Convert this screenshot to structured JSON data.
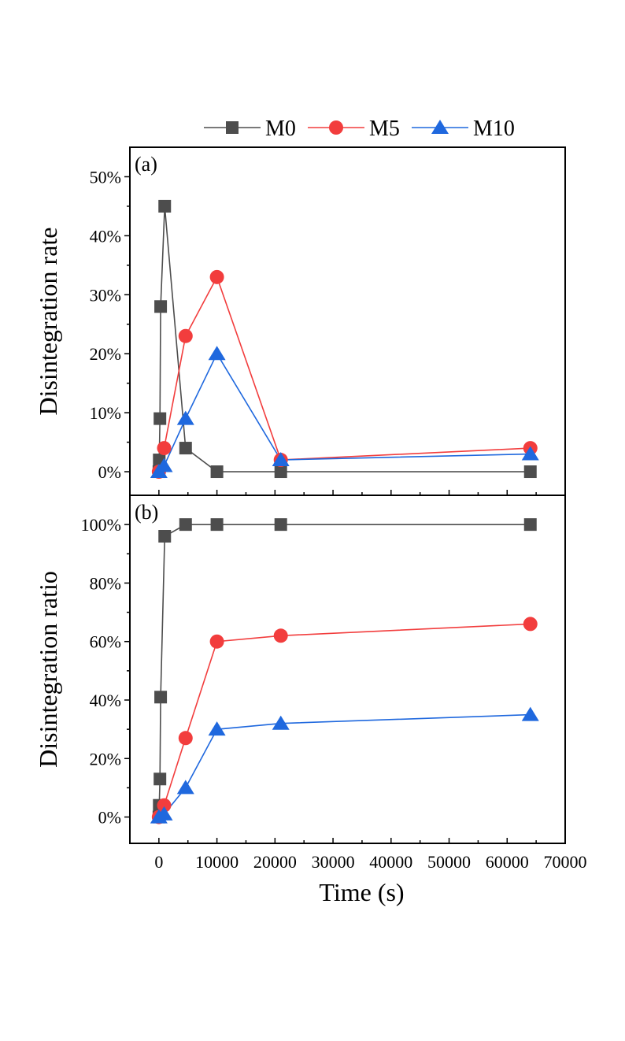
{
  "chart_data": [
    {
      "type": "line",
      "panel_label": "(a)",
      "ylabel": "Disintegration rate",
      "xlabel": "",
      "ylim": [
        -4,
        55
      ],
      "xlim": [
        -5000,
        70000
      ],
      "yticks": [
        "0%",
        "10%",
        "20%",
        "30%",
        "40%",
        "50%"
      ],
      "ytick_values": [
        0,
        10,
        20,
        30,
        40,
        50
      ],
      "series": [
        {
          "name": "M0",
          "color": "#4d4d4d",
          "marker": "square",
          "x": [
            0,
            60,
            180,
            300,
            1000,
            4600,
            10000,
            21000,
            64000
          ],
          "y": [
            0,
            2,
            9,
            28,
            45,
            4,
            0,
            0,
            0
          ]
        },
        {
          "name": "M5",
          "color": "#f23d3d",
          "marker": "circle",
          "x": [
            0,
            900,
            4600,
            10000,
            21000,
            64000
          ],
          "y": [
            0,
            4,
            23,
            33,
            2,
            4
          ]
        },
        {
          "name": "M10",
          "color": "#1f68de",
          "marker": "triangle",
          "x": [
            0,
            900,
            4600,
            10000,
            21000,
            64000
          ],
          "y": [
            0,
            1,
            9,
            20,
            2,
            3
          ]
        }
      ]
    },
    {
      "type": "line",
      "panel_label": "(b)",
      "ylabel": "Disintegration ratio",
      "xlabel": "Time (s)",
      "ylim": [
        -9,
        110
      ],
      "xlim": [
        -5000,
        70000
      ],
      "yticks": [
        "0%",
        "20%",
        "40%",
        "60%",
        "80%",
        "100%"
      ],
      "ytick_values": [
        0,
        20,
        40,
        60,
        80,
        100
      ],
      "xticks": [
        "0",
        "10000",
        "20000",
        "30000",
        "40000",
        "50000",
        "60000",
        "70000"
      ],
      "xtick_values": [
        0,
        10000,
        20000,
        30000,
        40000,
        50000,
        60000,
        70000
      ],
      "series": [
        {
          "name": "M0",
          "color": "#4d4d4d",
          "marker": "square",
          "x": [
            0,
            60,
            180,
            300,
            1000,
            4600,
            10000,
            21000,
            64000
          ],
          "y": [
            0,
            4,
            13,
            41,
            96,
            100,
            100,
            100,
            100
          ]
        },
        {
          "name": "M5",
          "color": "#f23d3d",
          "marker": "circle",
          "x": [
            0,
            900,
            4600,
            10000,
            21000,
            64000
          ],
          "y": [
            0,
            4,
            27,
            60,
            62,
            66
          ]
        },
        {
          "name": "M10",
          "color": "#1f68de",
          "marker": "triangle",
          "x": [
            0,
            900,
            4600,
            10000,
            21000,
            64000
          ],
          "y": [
            0,
            1,
            10,
            30,
            32,
            35
          ]
        }
      ]
    }
  ],
  "legend": {
    "placement": "top",
    "entries": [
      {
        "name": "M0",
        "color": "#4d4d4d",
        "marker": "square"
      },
      {
        "name": "M5",
        "color": "#f23d3d",
        "marker": "circle"
      },
      {
        "name": "M10",
        "color": "#1f68de",
        "marker": "triangle"
      }
    ]
  }
}
